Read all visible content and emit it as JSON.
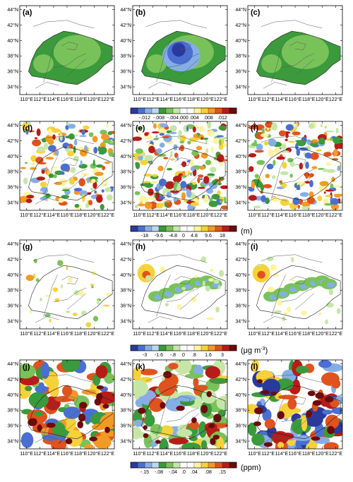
{
  "chart_data": [
    {
      "type": "heatmap",
      "rows": [
        {
          "panels": [
            {
              "label": "(a)",
              "pattern": "smooth_green",
              "axes": true
            },
            {
              "label": "(b)",
              "pattern": "smooth_blue_core",
              "axes": true
            },
            {
              "label": "(c)",
              "pattern": "smooth_green",
              "axes": true
            }
          ],
          "colorbar": {
            "ticks": [
              "-.012",
              "-.008",
              "-.004",
              ".000",
              ".004",
              ".008",
              ".012"
            ],
            "unit": "",
            "colors": [
              "#2a3a9c",
              "#4b6fd1",
              "#86aee6",
              "#bcd8f0",
              "#3b9a3b",
              "#79c25a",
              "#c6e6a8",
              "#ffffff",
              "#ffffff",
              "#fff3a0",
              "#f6d23a",
              "#f19a26",
              "#e0531e",
              "#b81c18",
              "#6e0a0a"
            ]
          }
        },
        {
          "panels": [
            {
              "label": "(d)",
              "pattern": "noisy_mixed",
              "axes": true
            },
            {
              "label": "(e)",
              "pattern": "noisy_mixed_strong",
              "axes": true
            },
            {
              "label": "(f)",
              "pattern": "noisy_mixed",
              "axes": true
            }
          ],
          "colorbar": {
            "ticks": [
              "-18",
              "-9.6",
              "-4.8",
              "0",
              "4.8",
              "9.6",
              "18"
            ],
            "unit": "(m)",
            "colors": [
              "#2a3a9c",
              "#4b6fd1",
              "#86aee6",
              "#bcd8f0",
              "#3b9a3b",
              "#79c25a",
              "#c6e6a8",
              "#ffffff",
              "#ffffff",
              "#fff3a0",
              "#f6d23a",
              "#f19a26",
              "#e0531e",
              "#b81c18",
              "#6e0a0a"
            ]
          }
        },
        {
          "panels": [
            {
              "label": "(g)",
              "pattern": "sparse",
              "axes": true
            },
            {
              "label": "(h)",
              "pattern": "band",
              "axes": true
            },
            {
              "label": "(i)",
              "pattern": "band",
              "axes": true
            }
          ],
          "colorbar": {
            "ticks": [
              "-3",
              "-1.6",
              "-.8",
              "0",
              ".8",
              "1.6",
              "3"
            ],
            "unit": "(μg m",
            "unit_sup": "-3",
            "unit_end": ")",
            "colors": [
              "#2a3a9c",
              "#4b6fd1",
              "#86aee6",
              "#bcd8f0",
              "#3b9a3b",
              "#79c25a",
              "#c6e6a8",
              "#ffffff",
              "#ffffff",
              "#fff3a0",
              "#f6d23a",
              "#f19a26",
              "#e0531e",
              "#b81c18",
              "#6e0a0a"
            ]
          }
        },
        {
          "panels": [
            {
              "label": "(j)",
              "pattern": "blobs",
              "axes": true
            },
            {
              "label": "(k)",
              "pattern": "blobs_green",
              "axes": true
            },
            {
              "label": "(l)",
              "pattern": "blobs_blue",
              "axes": true
            }
          ],
          "colorbar": {
            "ticks": [
              "-.15",
              "-.08",
              "-.04",
              ".0",
              ".04",
              ".08",
              ".15"
            ],
            "unit": "(ppm)",
            "colors": [
              "#2a3a9c",
              "#4b6fd1",
              "#86aee6",
              "#bcd8f0",
              "#3b9a3b",
              "#79c25a",
              "#c6e6a8",
              "#ffffff",
              "#ffffff",
              "#fff3a0",
              "#f6d23a",
              "#f19a26",
              "#e0531e",
              "#b81c18",
              "#6e0a0a"
            ]
          }
        }
      ],
      "lat_labels": [
        "34°N",
        "36°N",
        "38°N",
        "40°N",
        "42°N",
        "44°N"
      ],
      "lon_labels": [
        "110°E",
        "112°E",
        "114°E",
        "116°E",
        "118°E",
        "120°E",
        "122°E"
      ],
      "xlim": [
        109,
        123
      ],
      "ylim": [
        33,
        44.5
      ],
      "grid": false
    }
  ]
}
